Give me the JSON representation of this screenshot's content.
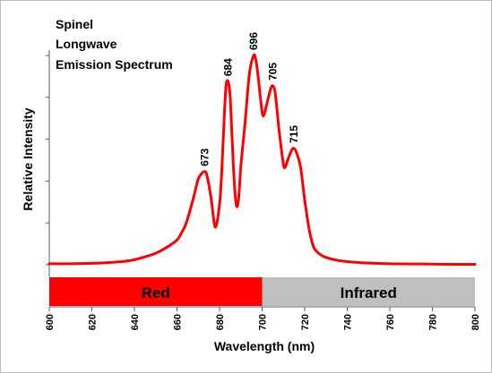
{
  "chart_data": {
    "type": "line",
    "title_lines": [
      "Spinel",
      "Longwave",
      "Emission Spectrum"
    ],
    "xlabel": "Wavelength (nm)",
    "ylabel": "Relative Intensity",
    "xlim": [
      600,
      800
    ],
    "ylim": [
      0,
      1
    ],
    "x_ticks": [
      "600",
      "620",
      "640",
      "660",
      "680",
      "700",
      "720",
      "740",
      "760",
      "780",
      "800"
    ],
    "y_ticks": [
      0,
      0.2,
      0.4,
      0.6,
      0.8,
      1.0
    ],
    "grid": false,
    "series_color": "#ff0000",
    "series": [
      {
        "x": [
          600,
          610,
          620,
          630,
          635,
          640,
          645,
          650,
          655,
          660,
          662,
          664,
          666,
          668,
          670,
          672,
          673,
          674,
          676,
          678,
          680,
          681,
          682,
          683,
          684,
          685,
          686,
          687,
          688,
          689,
          690,
          692,
          694,
          696,
          697,
          698,
          700,
          701,
          702,
          704,
          705,
          706,
          707,
          708,
          710,
          711,
          712,
          714,
          715,
          716,
          718,
          720,
          722,
          724,
          726,
          728,
          730,
          735,
          740,
          745,
          750,
          760,
          770,
          780,
          790,
          800
        ],
        "y": [
          0.005,
          0.005,
          0.007,
          0.012,
          0.016,
          0.024,
          0.038,
          0.055,
          0.082,
          0.118,
          0.15,
          0.19,
          0.255,
          0.33,
          0.41,
          0.44,
          0.445,
          0.43,
          0.32,
          0.18,
          0.29,
          0.44,
          0.66,
          0.85,
          0.875,
          0.8,
          0.58,
          0.38,
          0.28,
          0.32,
          0.47,
          0.68,
          0.91,
          1.0,
          0.98,
          0.91,
          0.73,
          0.72,
          0.76,
          0.84,
          0.855,
          0.83,
          0.74,
          0.64,
          0.48,
          0.47,
          0.5,
          0.55,
          0.555,
          0.54,
          0.47,
          0.31,
          0.175,
          0.09,
          0.06,
          0.045,
          0.035,
          0.022,
          0.015,
          0.011,
          0.008,
          0.005,
          0.004,
          0.003,
          0.002,
          0.002
        ]
      }
    ],
    "peak_annotations": [
      {
        "x": 673,
        "y": 0.445,
        "label": "673"
      },
      {
        "x": 684,
        "y": 0.875,
        "label": "684"
      },
      {
        "x": 696,
        "y": 1.0,
        "label": "696"
      },
      {
        "x": 705,
        "y": 0.855,
        "label": "705"
      },
      {
        "x": 715,
        "y": 0.555,
        "label": "715"
      }
    ],
    "bands": [
      {
        "label": "Red",
        "x_start": 600,
        "x_end": 700,
        "color": "#ff0000"
      },
      {
        "label": "Infrared",
        "x_start": 700,
        "x_end": 800,
        "color": "#bfbfbf"
      }
    ]
  }
}
